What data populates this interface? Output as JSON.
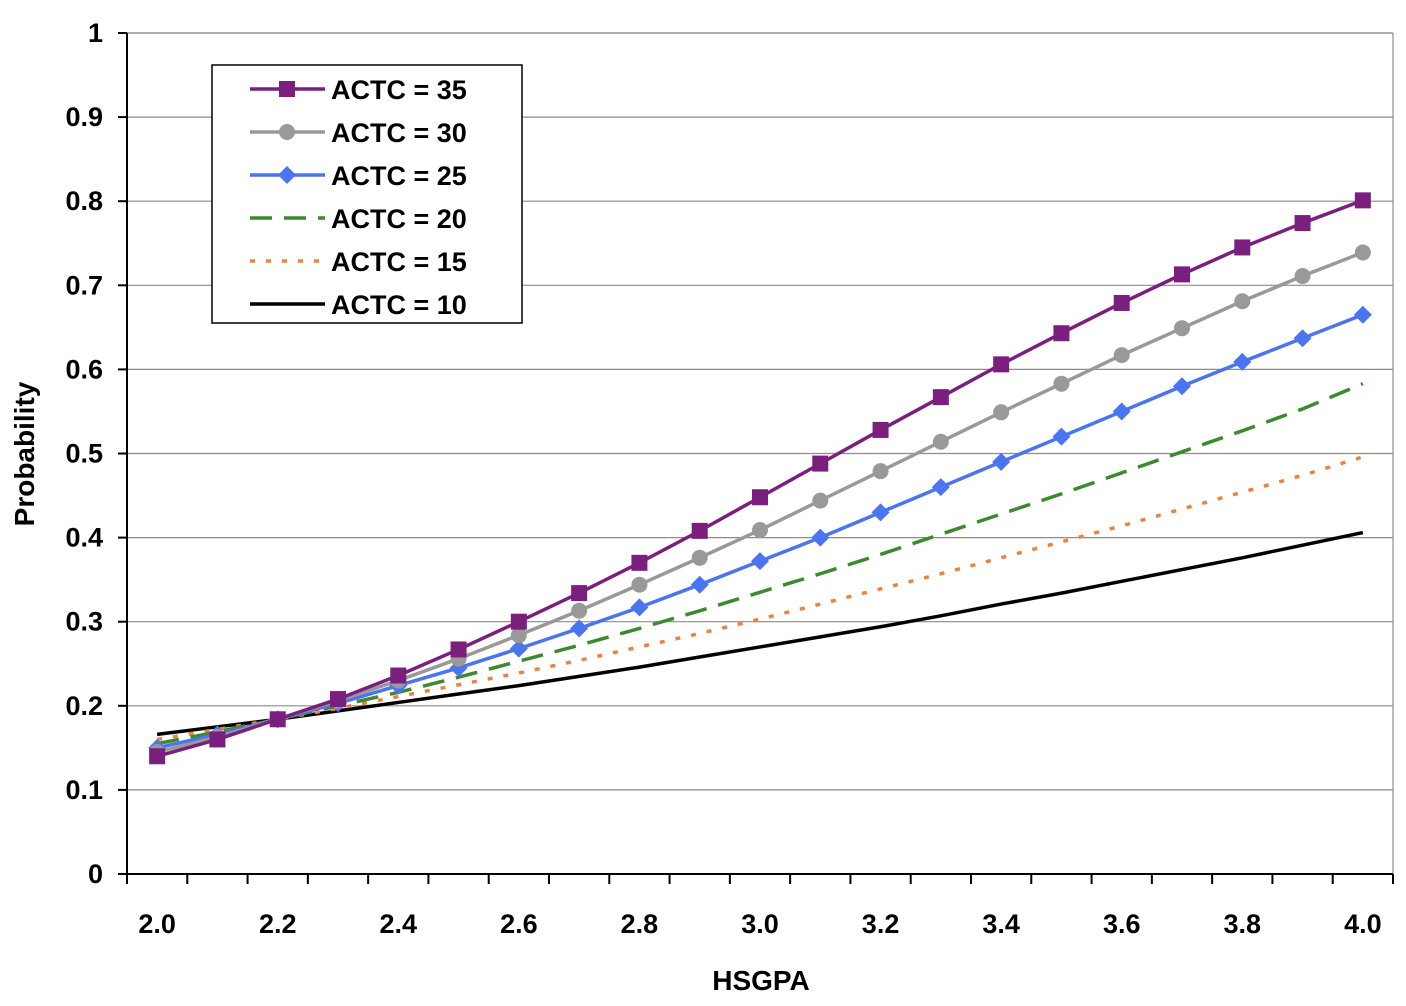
{
  "chart_data": {
    "type": "line",
    "title": "",
    "xlabel": "HSGPA",
    "ylabel": "Probability",
    "xlim": [
      1.95,
      4.05
    ],
    "ylim": [
      0,
      1
    ],
    "x_ticks": [
      "2.0",
      "2.2",
      "2.4",
      "2.6",
      "2.8",
      "3.0",
      "3.2",
      "3.4",
      "3.6",
      "3.8",
      "4.0"
    ],
    "y_ticks": [
      "0",
      "0.1",
      "0.2",
      "0.3",
      "0.4",
      "0.5",
      "0.6",
      "0.7",
      "0.8",
      "0.9",
      "1"
    ],
    "grid": "horizontal",
    "legend_position": "top-left",
    "x": [
      2.0,
      2.1,
      2.2,
      2.3,
      2.4,
      2.5,
      2.6,
      2.7,
      2.8,
      2.9,
      3.0,
      3.1,
      3.2,
      3.3,
      3.4,
      3.5,
      3.6,
      3.7,
      3.8,
      3.9,
      4.0
    ],
    "series": [
      {
        "name": "ACTC = 35",
        "color": "#7b1f7f",
        "style": "solid",
        "marker": "square",
        "values": [
          0.14,
          0.16,
          0.184,
          0.208,
          0.236,
          0.267,
          0.3,
          0.334,
          0.37,
          0.408,
          0.448,
          0.488,
          0.528,
          0.567,
          0.606,
          0.643,
          0.679,
          0.713,
          0.745,
          0.774,
          0.801
        ]
      },
      {
        "name": "ACTC = 30",
        "color": "#999999",
        "style": "solid",
        "marker": "circle",
        "values": [
          0.145,
          0.163,
          0.184,
          0.206,
          0.23,
          0.256,
          0.284,
          0.313,
          0.344,
          0.376,
          0.409,
          0.444,
          0.479,
          0.514,
          0.549,
          0.583,
          0.617,
          0.649,
          0.681,
          0.711,
          0.739
        ]
      },
      {
        "name": "ACTC = 25",
        "color": "#4a74f0",
        "style": "solid",
        "marker": "diamond",
        "values": [
          0.15,
          0.166,
          0.184,
          0.203,
          0.224,
          0.245,
          0.268,
          0.292,
          0.317,
          0.344,
          0.372,
          0.4,
          0.43,
          0.46,
          0.49,
          0.52,
          0.55,
          0.58,
          0.609,
          0.637,
          0.665
        ]
      },
      {
        "name": "ACTC = 20",
        "color": "#3c8a2e",
        "style": "dash",
        "marker": "none",
        "values": [
          0.155,
          0.169,
          0.184,
          0.2,
          0.216,
          0.234,
          0.253,
          0.272,
          0.292,
          0.313,
          0.335,
          0.357,
          0.38,
          0.404,
          0.428,
          0.452,
          0.477,
          0.502,
          0.527,
          0.553,
          0.583
        ]
      },
      {
        "name": "ACTC = 15",
        "color": "#f08040",
        "style": "dot",
        "marker": "none",
        "values": [
          0.16,
          0.172,
          0.184,
          0.197,
          0.211,
          0.225,
          0.239,
          0.254,
          0.27,
          0.286,
          0.303,
          0.321,
          0.339,
          0.357,
          0.376,
          0.395,
          0.414,
          0.434,
          0.454,
          0.474,
          0.496
        ]
      },
      {
        "name": "ACTC = 10",
        "color": "#000000",
        "style": "solid",
        "marker": "none",
        "values": [
          0.166,
          0.175,
          0.184,
          0.194,
          0.204,
          0.214,
          0.224,
          0.235,
          0.246,
          0.258,
          0.27,
          0.282,
          0.294,
          0.307,
          0.321,
          0.334,
          0.348,
          0.362,
          0.376,
          0.391,
          0.406
        ]
      }
    ]
  }
}
